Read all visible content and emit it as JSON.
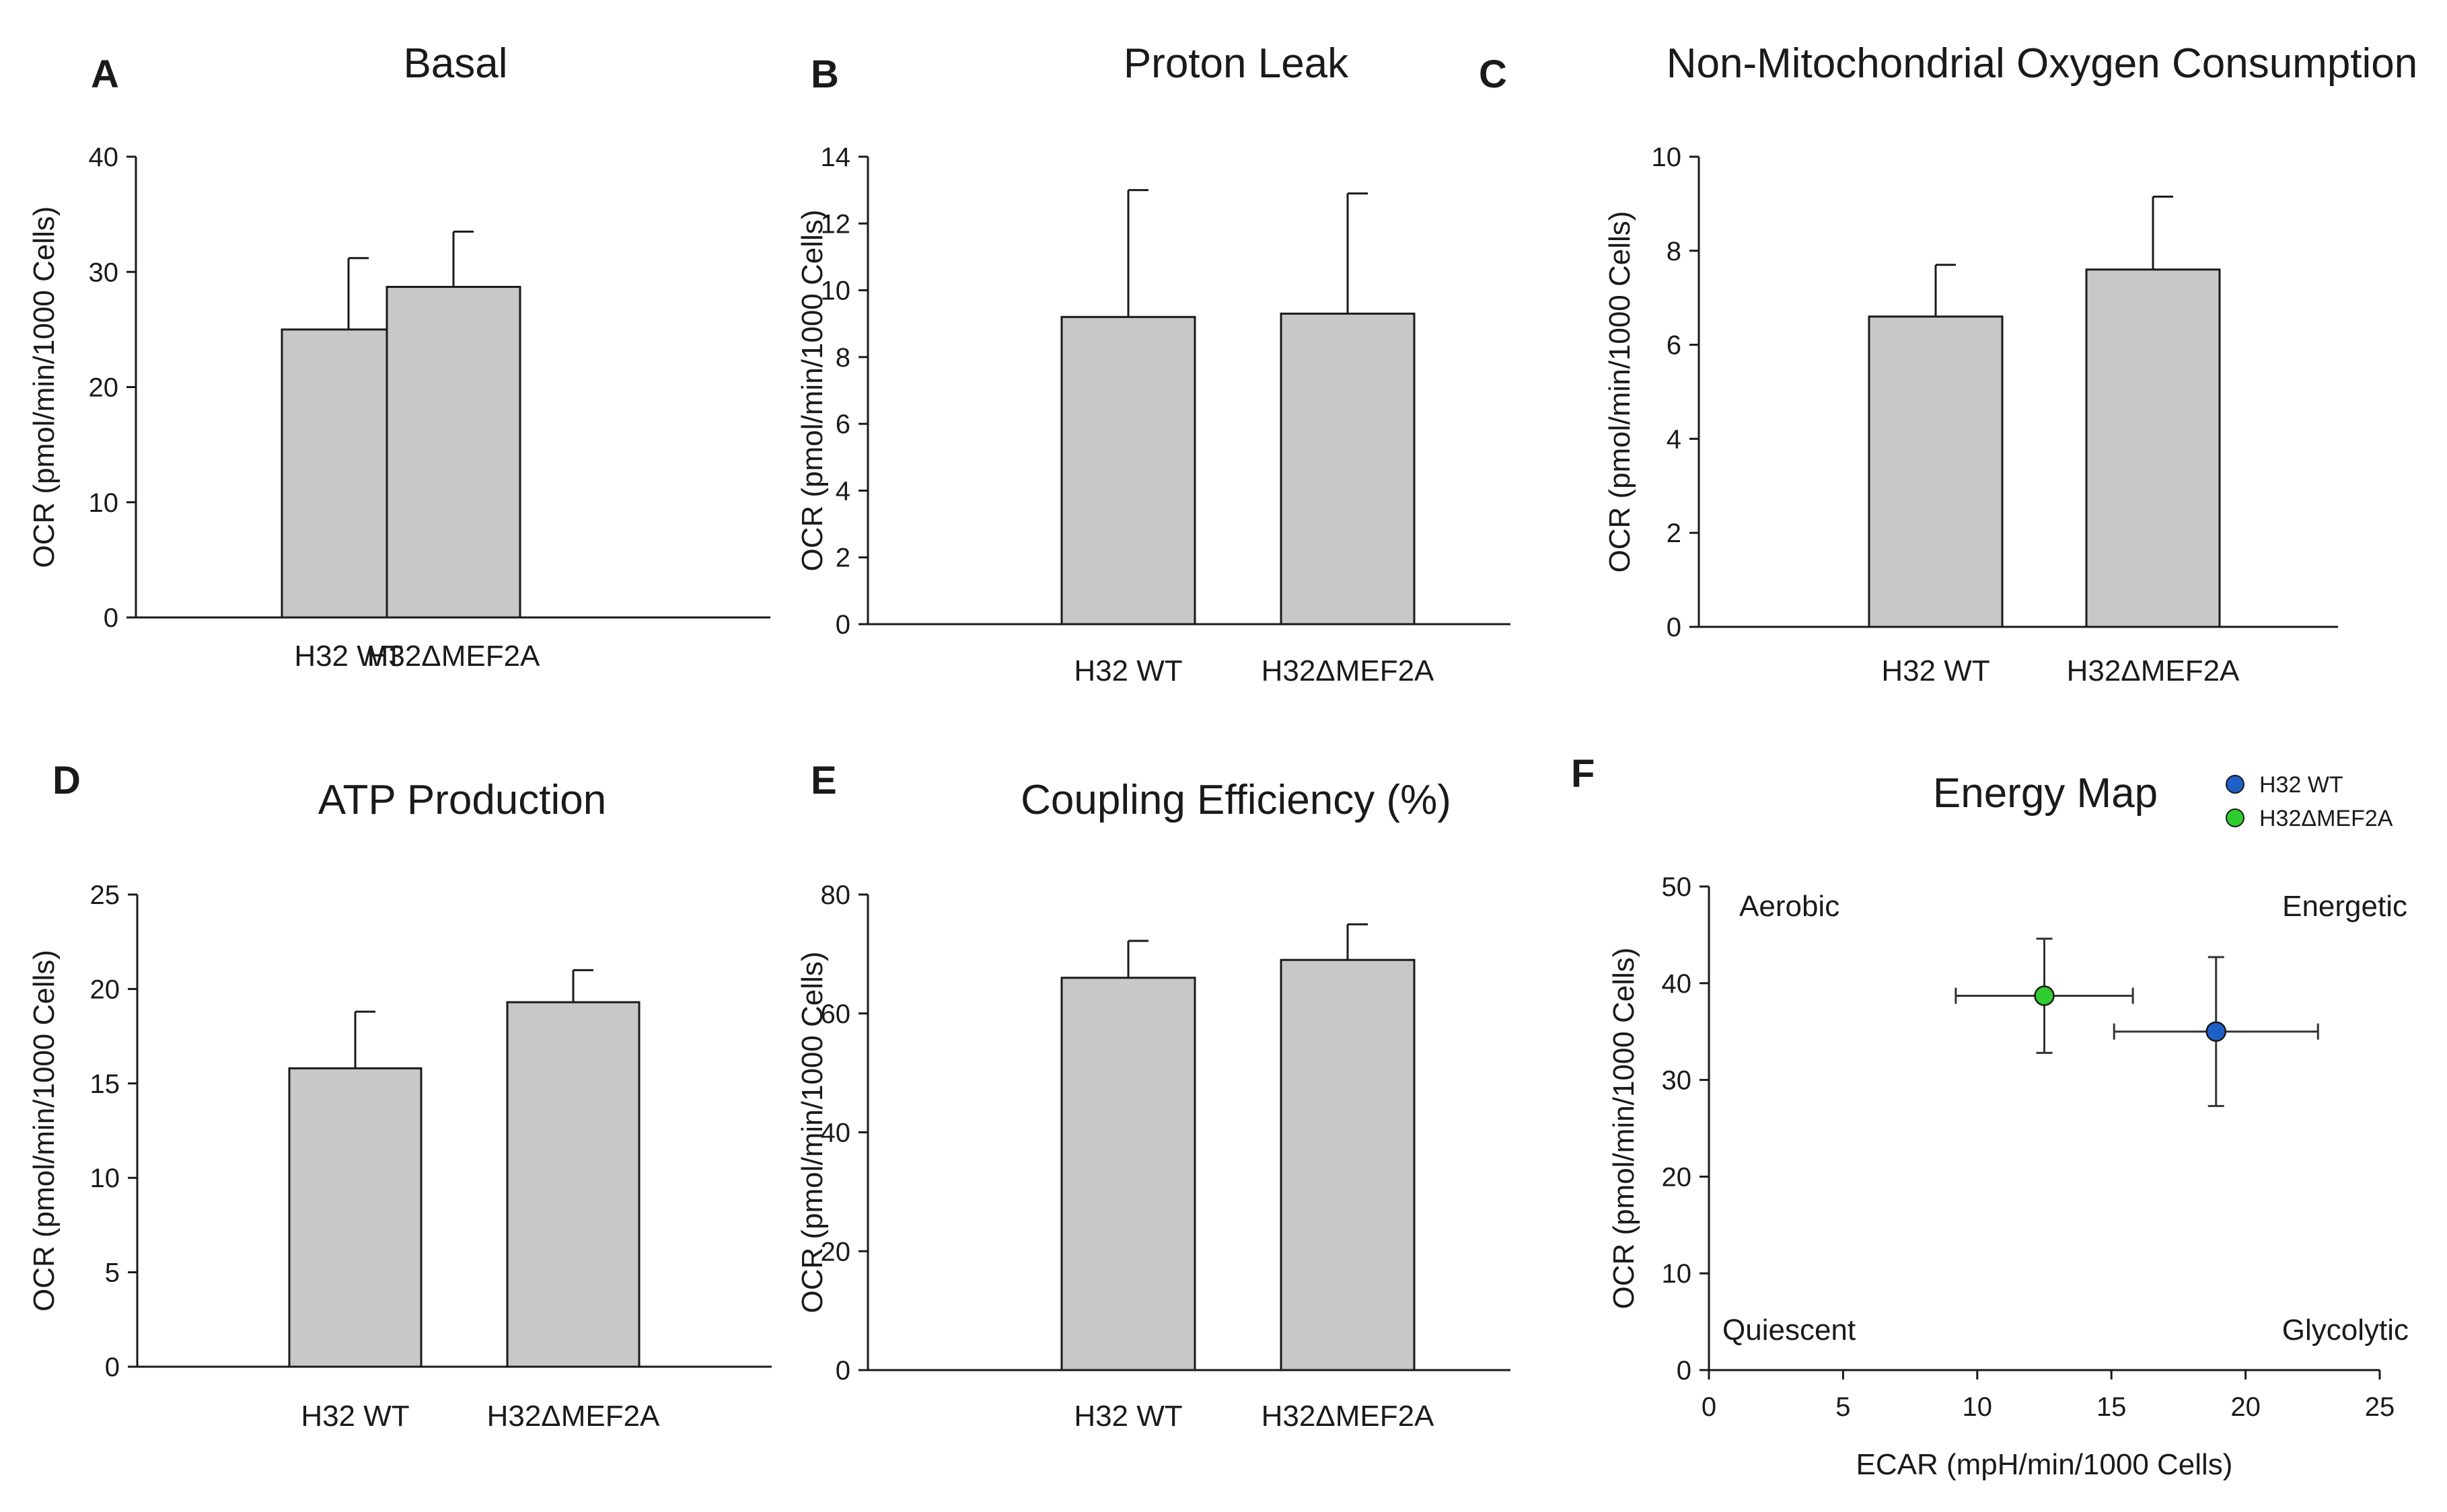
{
  "figure": {
    "chart_data": [
      {
        "id": "A",
        "type": "bar",
        "panel_label": "A",
        "title": "Basal",
        "ylabel": "OCR (pmol/min/1000 Cells)",
        "categories": [
          "H32 WT",
          "H32ΔMEF2A"
        ],
        "values": [
          25.0,
          28.7
        ],
        "errors": [
          6.2,
          4.8
        ],
        "ylim": [
          0,
          40
        ],
        "yticks": [
          0,
          10,
          20,
          30,
          40
        ],
        "colors": {
          "bar": "#c8c8c8",
          "stroke": "#1a1a1a"
        }
      },
      {
        "id": "B",
        "type": "bar",
        "panel_label": "B",
        "title": "Proton Leak",
        "ylabel": "OCR (pmol/min/1000 Cells)",
        "categories": [
          "H32 WT",
          "H32ΔMEF2A"
        ],
        "values": [
          9.2,
          9.3
        ],
        "errors": [
          3.8,
          3.6
        ],
        "ylim": [
          0,
          14
        ],
        "yticks": [
          0,
          2,
          4,
          6,
          8,
          10,
          12,
          14
        ],
        "colors": {
          "bar": "#c8c8c8",
          "stroke": "#1a1a1a"
        }
      },
      {
        "id": "C",
        "type": "bar",
        "panel_label": "C",
        "title": "Non-Mitochondrial Oxygen Consumption",
        "ylabel": "OCR (pmol/min/1000 Cells)",
        "categories": [
          "H32 WT",
          "H32ΔMEF2A"
        ],
        "values": [
          6.6,
          7.6
        ],
        "errors": [
          1.1,
          1.55
        ],
        "ylim": [
          0,
          10
        ],
        "yticks": [
          0,
          2,
          4,
          6,
          8,
          10
        ],
        "colors": {
          "bar": "#c8c8c8",
          "stroke": "#1a1a1a"
        }
      },
      {
        "id": "D",
        "type": "bar",
        "panel_label": "D",
        "title": "ATP Production",
        "ylabel": "OCR (pmol/min/1000 Cells)",
        "categories": [
          "H32 WT",
          "H32ΔMEF2A"
        ],
        "values": [
          15.8,
          19.3
        ],
        "errors": [
          3.0,
          1.7
        ],
        "ylim": [
          0,
          25
        ],
        "yticks": [
          0,
          5,
          10,
          15,
          20,
          25
        ],
        "colors": {
          "bar": "#c8c8c8",
          "stroke": "#1a1a1a"
        }
      },
      {
        "id": "E",
        "type": "bar",
        "panel_label": "E",
        "title": "Coupling Efficiency (%)",
        "ylabel": "OCR (pmol/min/1000 Cells)",
        "categories": [
          "H32 WT",
          "H32ΔMEF2A"
        ],
        "values": [
          66.0,
          69.0
        ],
        "errors": [
          6.2,
          6.0
        ],
        "ylim": [
          0,
          80
        ],
        "yticks": [
          0,
          20,
          40,
          60,
          80
        ],
        "colors": {
          "bar": "#c8c8c8",
          "stroke": "#1a1a1a"
        }
      },
      {
        "id": "F",
        "type": "scatter",
        "panel_label": "F",
        "title": "Energy Map",
        "xlabel": "ECAR (mpH/min/1000 Cells)",
        "ylabel": "OCR (pmol/min/1000 Cells)",
        "xlim": [
          0,
          25
        ],
        "ylim": [
          0,
          50
        ],
        "xticks": [
          0,
          5,
          10,
          15,
          20,
          25
        ],
        "yticks": [
          0,
          10,
          20,
          30,
          40,
          50
        ],
        "quadrants": {
          "top_left": "Aerobic",
          "top_right": "Energetic",
          "bottom_left": "Quiescent",
          "bottom_right": "Glycolytic"
        },
        "legend_position": "top-right",
        "series": [
          {
            "name": "H32 WT",
            "x": 18.9,
            "y": 35.0,
            "x_err": 3.8,
            "y_err": 7.7,
            "color": "#1f5fc8"
          },
          {
            "name": "H32ΔMEF2A",
            "x": 12.5,
            "y": 38.7,
            "x_err": 3.3,
            "y_err": 5.9,
            "color": "#2ecc2e"
          }
        ]
      }
    ]
  }
}
